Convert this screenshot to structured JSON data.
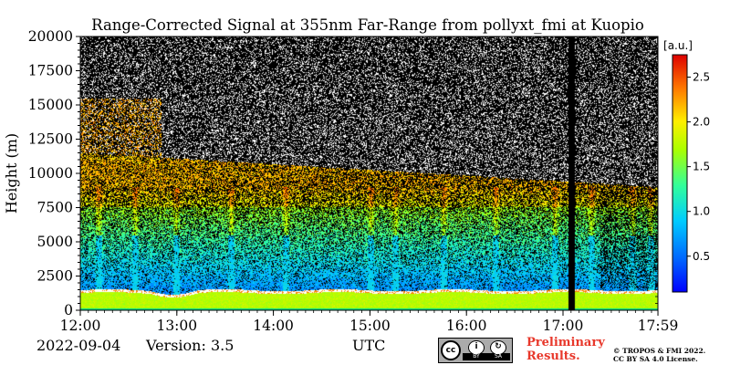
{
  "chart_data": {
    "type": "heatmap",
    "title": "Range-Corrected Signal at 355nm Far-Range from pollyxt_fmi at Kuopio",
    "ylabel": "Height (m)",
    "xlabel": "UTC",
    "x_ticks": [
      "12:00",
      "13:00",
      "14:00",
      "15:00",
      "16:00",
      "17:00",
      "17:59"
    ],
    "y_ticks": [
      0,
      2500,
      5000,
      7500,
      10000,
      12500,
      15000,
      17500,
      20000
    ],
    "ylim": [
      0,
      20000
    ],
    "xlim_hours": [
      12.0,
      17.983
    ],
    "colorbar": {
      "unit": "[a.u.]",
      "ticks": [
        0.5,
        1.0,
        1.5,
        2.0,
        2.5
      ],
      "range": [
        0.1,
        2.75
      ],
      "colormap": "jet"
    },
    "features": {
      "boundary_layer_top_m": 1400,
      "high_signal_band_m": [
        7500,
        11500
      ],
      "data_gap_utc": [
        "17:03",
        "17:07"
      ]
    }
  },
  "footer": {
    "date": "2022-09-04",
    "version": "Version: 3.5",
    "preliminary_line1": "Preliminary",
    "preliminary_line2": "Results.",
    "copyright_line1": "© TROPOS & FMI 2022.",
    "copyright_line2": "CC BY SA 4.0 License.",
    "license_by": "BY",
    "license_sa": "SA"
  }
}
